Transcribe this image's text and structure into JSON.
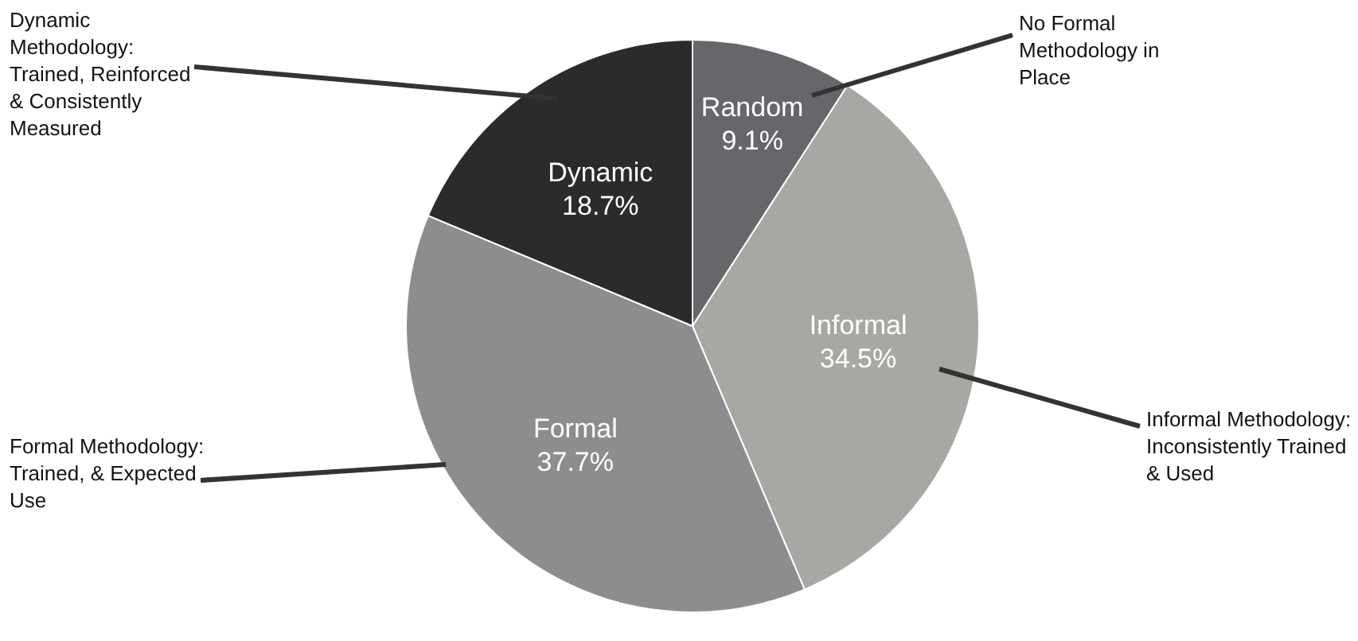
{
  "chart_data": {
    "type": "pie",
    "categories": [
      "Random",
      "Informal",
      "Formal",
      "Dynamic"
    ],
    "values": [
      9.1,
      34.5,
      37.7,
      18.7
    ],
    "value_labels": [
      "9.1%",
      "34.5%",
      "37.7%",
      "18.7%"
    ],
    "colors": [
      "#66676b",
      "#a7a7a4",
      "#8b8d8f",
      "#2b2b2d"
    ],
    "legend": false,
    "annotations": [
      "Dynamic Methodology: Trained, Reinforced & Consistently Measured",
      "No Formal Methodology in Place",
      "Informal Methodology: Inconsistently Trained & Used",
      "Formal Methodology: Trained, & Expected Use"
    ]
  }
}
